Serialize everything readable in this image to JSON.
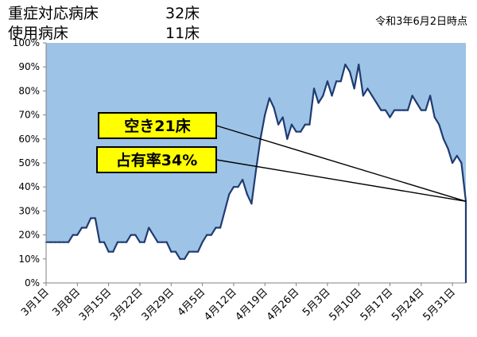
{
  "header": {
    "severe_beds_label": "重症対応病床",
    "severe_beds_value": "32床",
    "used_beds_label": "使用病床",
    "used_beds_value": "11床",
    "as_of": "令和3年6月2日時点"
  },
  "colors": {
    "plot_fill": "#9DC3E6",
    "line": "#1F3B73",
    "callout_fill": "#FFFF00"
  },
  "chart_data": {
    "type": "area",
    "title": "",
    "xlabel": "",
    "ylabel": "",
    "ylim": [
      0,
      100
    ],
    "y_unit": "%",
    "y_ticks": [
      "0%",
      "10%",
      "20%",
      "30%",
      "40%",
      "50%",
      "60%",
      "70%",
      "80%",
      "90%",
      "100%"
    ],
    "x_tick_labels": [
      "3月1日",
      "3月8日",
      "3月15日",
      "3月22日",
      "3月29日",
      "4月5日",
      "4月12日",
      "4月19日",
      "4月26日",
      "5月3日",
      "5月10日",
      "5月17日",
      "5月24日",
      "5月31日"
    ],
    "x_start": "3月1日",
    "x_end": "6月2日",
    "series": [
      {
        "values": [
          17,
          17,
          17,
          17,
          17,
          17,
          20,
          20,
          23,
          23,
          27,
          27,
          17,
          17,
          13,
          13,
          17,
          17,
          17,
          20,
          20,
          17,
          17,
          23,
          20,
          17,
          17,
          17,
          13,
          13,
          10,
          10,
          13,
          13,
          13,
          17,
          20,
          20,
          23,
          23,
          30,
          37,
          40,
          40,
          43,
          37,
          33,
          47,
          60,
          70,
          77,
          73,
          66,
          69,
          60,
          66,
          63,
          63,
          66,
          66,
          81,
          75,
          78,
          84,
          78,
          84,
          84,
          91,
          88,
          81,
          91,
          78,
          81,
          78,
          75,
          72,
          72,
          69,
          72,
          72,
          72,
          72,
          78,
          75,
          72,
          72,
          78,
          69,
          66,
          60,
          56,
          50,
          53,
          50,
          34
        ]
      }
    ],
    "annotations": [
      {
        "text": "空き21床"
      },
      {
        "text": "占有率34%"
      }
    ]
  }
}
